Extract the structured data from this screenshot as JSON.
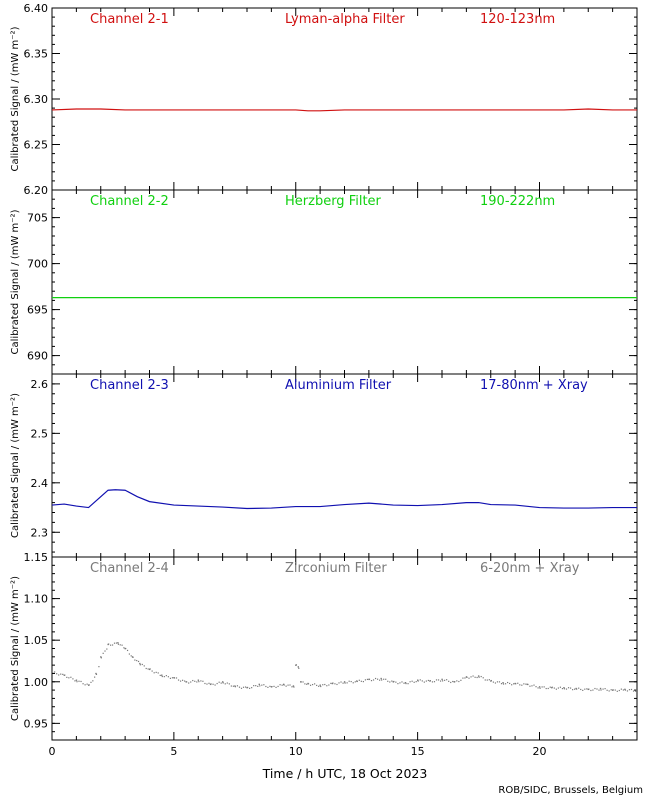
{
  "chart_data": [
    {
      "type": "line",
      "channel": "Channel 2-1",
      "filter": "Lyman-alpha Filter",
      "band": "120-123nm",
      "color": "#d01010",
      "ylabel": "Calibrated Signal / (mW m⁻²)",
      "ylim": [
        6.2,
        6.4
      ],
      "yticks": [
        6.2,
        6.25,
        6.3,
        6.35,
        6.4
      ],
      "ytick_labels": [
        "6.20",
        "6.25",
        "6.30",
        "6.35",
        "6.40"
      ],
      "xlim": [
        0,
        24
      ],
      "x": [
        0,
        1,
        2,
        3,
        4,
        5,
        6,
        7,
        8,
        9,
        10,
        10.5,
        11,
        12,
        13,
        14,
        15,
        16,
        17,
        18,
        19,
        20,
        21,
        22,
        23,
        24
      ],
      "y": [
        6.288,
        6.289,
        6.289,
        6.288,
        6.288,
        6.288,
        6.288,
        6.288,
        6.288,
        6.288,
        6.288,
        6.287,
        6.287,
        6.288,
        6.288,
        6.288,
        6.288,
        6.288,
        6.288,
        6.288,
        6.288,
        6.288,
        6.288,
        6.289,
        6.288,
        6.288
      ]
    },
    {
      "type": "line",
      "channel": "Channel 2-2",
      "filter": "Herzberg Filter",
      "band": "190-222nm",
      "color": "#10d010",
      "ylabel": "Calibrated Signal / (mW m⁻²)",
      "ylim": [
        688,
        708
      ],
      "yticks": [
        690,
        695,
        700,
        705
      ],
      "ytick_labels": [
        "690",
        "695",
        "700",
        "705"
      ],
      "xlim": [
        0,
        24
      ],
      "x": [
        0,
        2,
        4,
        6,
        8,
        10,
        12,
        14,
        16,
        18,
        20,
        22,
        24
      ],
      "y": [
        696.3,
        696.3,
        696.3,
        696.3,
        696.3,
        696.3,
        696.3,
        696.3,
        696.3,
        696.3,
        696.3,
        696.3,
        696.3
      ]
    },
    {
      "type": "line",
      "channel": "Channel 2-3",
      "filter": "Aluminium Filter",
      "band": "17-80nm + Xray",
      "color": "#1010b0",
      "ylabel": "Calibrated Signal / (mW m⁻²)",
      "ylim": [
        2.25,
        2.62
      ],
      "yticks": [
        2.3,
        2.4,
        2.5,
        2.6
      ],
      "ytick_labels": [
        "2.3",
        "2.4",
        "2.5",
        "2.6"
      ],
      "xlim": [
        0,
        24
      ],
      "x": [
        0,
        0.5,
        1,
        1.5,
        2,
        2.3,
        2.6,
        3,
        3.5,
        4,
        5,
        6,
        7,
        8,
        9,
        10,
        11,
        12,
        13,
        14,
        15,
        16,
        17,
        17.5,
        18,
        19,
        20,
        21,
        22,
        23,
        24
      ],
      "y": [
        2.355,
        2.357,
        2.353,
        2.35,
        2.372,
        2.385,
        2.386,
        2.385,
        2.372,
        2.362,
        2.355,
        2.353,
        2.351,
        2.348,
        2.349,
        2.352,
        2.352,
        2.356,
        2.359,
        2.355,
        2.354,
        2.356,
        2.36,
        2.36,
        2.356,
        2.355,
        2.35,
        2.349,
        2.349,
        2.35,
        2.35
      ]
    },
    {
      "type": "scatter",
      "channel": "Channel 2-4",
      "filter": "Zirconium Filter",
      "band": "6-20nm + Xray",
      "color": "#7a7a7a",
      "ylabel": "Calibrated Signal / (mW m⁻²)",
      "ylim": [
        0.93,
        1.15
      ],
      "yticks": [
        0.95,
        1.0,
        1.05,
        1.1,
        1.15
      ],
      "ytick_labels": [
        "0.95",
        "1.00",
        "1.05",
        "1.10",
        "1.15"
      ],
      "xlim": [
        0,
        24
      ],
      "xticks": [
        0,
        5,
        10,
        15,
        20
      ],
      "xtick_labels": [
        "0",
        "5",
        "10",
        "15",
        "20"
      ],
      "x": [
        0,
        0.5,
        1,
        1.5,
        1.8,
        2,
        2.3,
        2.7,
        3,
        3.3,
        3.6,
        4,
        4.5,
        5,
        5.5,
        6,
        6.5,
        7,
        7.5,
        8,
        8.5,
        9,
        9.5,
        9.9,
        10,
        10.1,
        10.2,
        10.5,
        11,
        11.5,
        12,
        12.5,
        13,
        13.5,
        14,
        14.5,
        15,
        15.5,
        16,
        16.5,
        17,
        17.5,
        18,
        18.5,
        19,
        19.5,
        20,
        20.5,
        21,
        21.5,
        22,
        22.5,
        23,
        23.5,
        24
      ],
      "y": [
        1.012,
        1.008,
        1.002,
        0.996,
        1.01,
        1.03,
        1.045,
        1.047,
        1.04,
        1.03,
        1.022,
        1.015,
        1.008,
        1.005,
        1.0,
        1.002,
        0.997,
        1.0,
        0.995,
        0.993,
        0.997,
        0.994,
        0.997,
        0.995,
        1.02,
        1.018,
        1.0,
        0.998,
        0.996,
        0.998,
        1.0,
        1.001,
        1.003,
        1.004,
        1.0,
        0.999,
        1.002,
        1.001,
        1.003,
        1.0,
        1.006,
        1.007,
        1.001,
        0.999,
        0.998,
        0.997,
        0.994,
        0.993,
        0.993,
        0.992,
        0.991,
        0.992,
        0.99,
        0.991,
        0.99
      ]
    }
  ],
  "xlabel": "Time / h UTC, 18 Oct 2023",
  "credit": "ROB/SIDC, Brussels, Belgium"
}
